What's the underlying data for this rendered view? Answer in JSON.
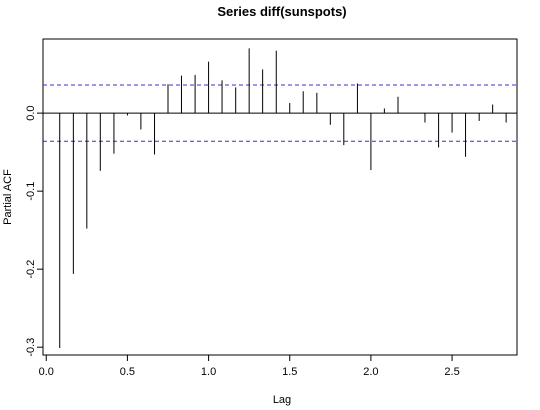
{
  "chart_data": {
    "type": "bar",
    "title": "Series  diff(sunspots)",
    "xlabel": "Lag",
    "ylabel": "Partial ACF",
    "xlim": [
      -0.02,
      2.9
    ],
    "ylim": [
      -0.31,
      0.095
    ],
    "x_ticks": [
      0.0,
      0.5,
      1.0,
      1.5,
      2.0,
      2.5
    ],
    "x_tick_labels": [
      "0.0",
      "0.5",
      "1.0",
      "1.5",
      "2.0",
      "2.5"
    ],
    "y_ticks": [
      -0.3,
      -0.2,
      -0.1,
      0.0
    ],
    "y_tick_labels": [
      "-0.3",
      "-0.2",
      "-0.1",
      "0.0"
    ],
    "confidence_bound": 0.036,
    "confidence_color": "#3333cc",
    "bar_color": "#000000",
    "lags": [
      0.083,
      0.167,
      0.25,
      0.333,
      0.417,
      0.5,
      0.583,
      0.667,
      0.75,
      0.833,
      0.917,
      1.0,
      1.083,
      1.167,
      1.25,
      1.333,
      1.417,
      1.5,
      1.583,
      1.667,
      1.75,
      1.833,
      1.917,
      2.0,
      2.083,
      2.167,
      2.25,
      2.333,
      2.417,
      2.5,
      2.583,
      2.667,
      2.75,
      2.833
    ],
    "values": [
      -0.301,
      -0.206,
      -0.148,
      -0.074,
      -0.052,
      -0.003,
      -0.021,
      -0.053,
      0.037,
      0.048,
      0.049,
      0.066,
      0.042,
      0.033,
      0.083,
      0.056,
      0.08,
      0.013,
      0.028,
      0.026,
      -0.015,
      -0.041,
      0.038,
      -0.073,
      0.006,
      0.021,
      0.0,
      -0.012,
      -0.044,
      -0.025,
      -0.056,
      -0.01,
      0.011,
      -0.012
    ]
  }
}
